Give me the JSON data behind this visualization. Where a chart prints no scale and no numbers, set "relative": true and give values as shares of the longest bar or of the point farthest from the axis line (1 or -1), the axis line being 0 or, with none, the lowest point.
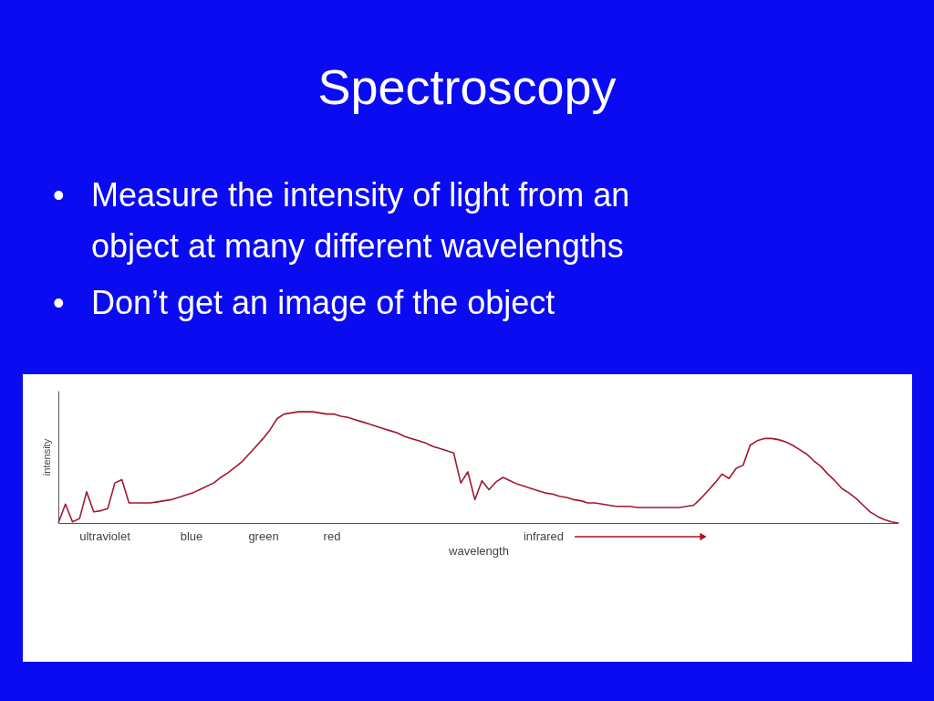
{
  "chart_data": {
    "type": "line",
    "relative": true,
    "title": "Spectroscopy",
    "xlabel": "wavelength",
    "ylabel": "intensity",
    "categories": [
      null,
      null,
      null,
      null,
      null,
      null,
      null,
      null,
      null,
      null,
      null,
      null,
      null,
      null,
      null,
      null,
      null,
      null,
      null,
      null,
      null,
      null,
      null,
      null,
      null,
      null,
      null,
      null,
      null,
      null,
      null,
      null,
      null,
      null,
      null,
      null,
      null,
      null,
      null,
      null,
      null,
      null,
      null,
      null,
      null,
      null,
      null,
      null,
      null,
      null,
      null,
      null,
      null,
      null,
      null,
      null,
      null,
      null,
      null,
      null,
      null,
      null,
      null,
      null,
      null,
      null,
      null,
      null,
      null,
      null,
      null,
      null,
      null,
      null,
      null,
      null,
      null,
      null,
      null,
      null,
      null,
      null,
      null,
      null,
      null,
      null,
      null,
      null,
      null,
      null,
      null,
      null,
      null,
      null,
      null,
      null,
      null,
      null,
      null,
      null,
      null,
      null,
      null,
      null,
      null,
      null,
      null,
      null,
      null,
      null,
      null,
      null,
      null,
      null,
      null,
      null,
      null,
      null,
      null,
      null
    ],
    "series": [
      {
        "color": "#a01830",
        "values": [
          0,
          0.17,
          0.01,
          0.04,
          0.28,
          0.1,
          0.11,
          0.13,
          0.36,
          0.39,
          0.18,
          0.18,
          0.18,
          0.18,
          0.19,
          0.2,
          0.21,
          0.23,
          0.25,
          0.27,
          0.3,
          0.33,
          0.36,
          0.41,
          0.45,
          0.5,
          0.55,
          0.62,
          0.69,
          0.76,
          0.84,
          0.94,
          0.98,
          0.99,
          1.0,
          1.0,
          1.0,
          0.99,
          0.98,
          0.98,
          0.96,
          0.95,
          0.93,
          0.91,
          0.89,
          0.87,
          0.85,
          0.83,
          0.81,
          0.78,
          0.76,
          0.74,
          0.72,
          0.69,
          0.67,
          0.65,
          0.63,
          0.36,
          0.46,
          0.21,
          0.38,
          0.3,
          0.37,
          0.41,
          0.38,
          0.35,
          0.33,
          0.31,
          0.29,
          0.27,
          0.26,
          0.24,
          0.23,
          0.21,
          0.2,
          0.18,
          0.18,
          0.17,
          0.16,
          0.15,
          0.15,
          0.15,
          0.14,
          0.14,
          0.14,
          0.14,
          0.14,
          0.14,
          0.14,
          0.15,
          0.16,
          0.22,
          0.29,
          0.36,
          0.44,
          0.4,
          0.49,
          0.52,
          0.7,
          0.74,
          0.76,
          0.76,
          0.75,
          0.73,
          0.7,
          0.66,
          0.62,
          0.56,
          0.51,
          0.44,
          0.38,
          0.31,
          0.27,
          0.22,
          0.16,
          0.1,
          0.06,
          0.03,
          0.01,
          0
        ]
      }
    ],
    "annotations": [
      "• Measure the intensity of light from an object at many different wavelengths",
      "• Don’t get an image of the object",
      "ultraviolet",
      "blue",
      "green",
      "red",
      "infrared"
    ],
    "grid": false
  }
}
